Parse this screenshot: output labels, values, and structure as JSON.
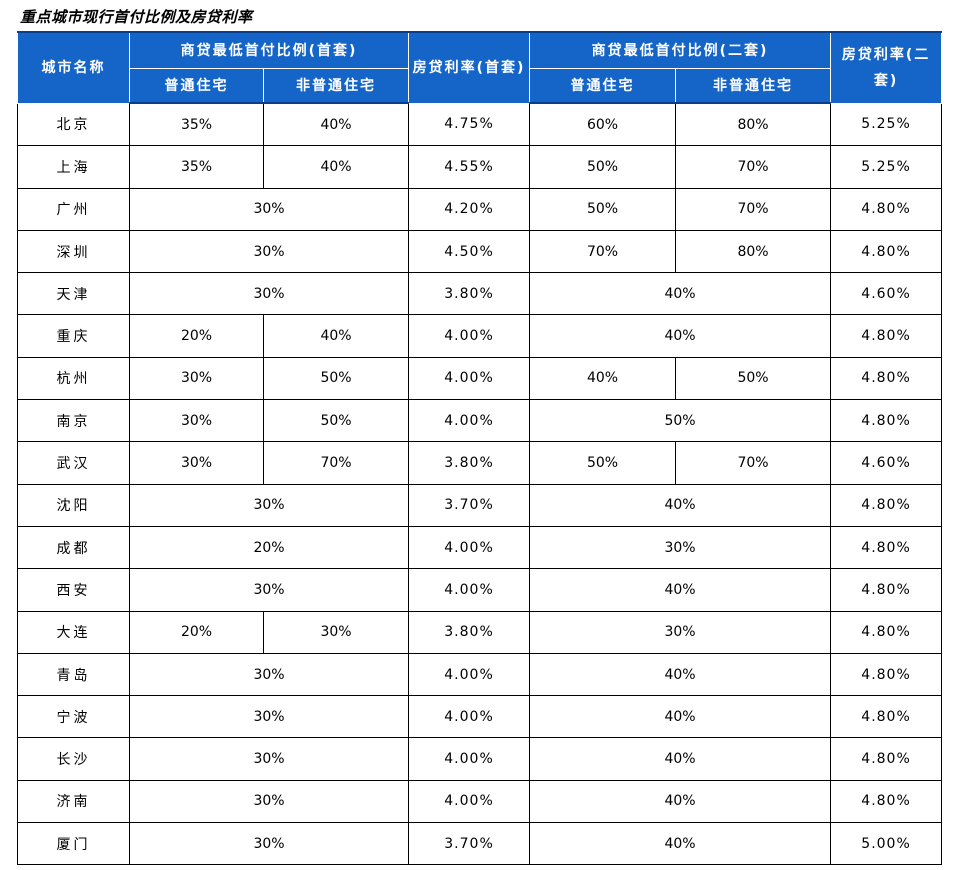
{
  "title": "重点城市现行首付比例及房贷利率",
  "header": {
    "city": "城市名称",
    "first_group": "商贷最低首付比例(首套)",
    "rate_first": "房贷利率(首套)",
    "second_group": "商贷最低首付比例(二套)",
    "rate_second": "房贷利率(二套)",
    "ordinary": "普通住宅",
    "non_ordinary": "非普通住宅"
  },
  "rows": [
    {
      "city": "北京",
      "first": [
        "35%",
        "40%"
      ],
      "rate1": "4.75%",
      "second": [
        "60%",
        "80%"
      ],
      "rate2": "5.25%"
    },
    {
      "city": "上海",
      "first": [
        "35%",
        "40%"
      ],
      "rate1": "4.55%",
      "second": [
        "50%",
        "70%"
      ],
      "rate2": "5.25%"
    },
    {
      "city": "广州",
      "first": [
        "30%"
      ],
      "rate1": "4.20%",
      "second": [
        "50%",
        "70%"
      ],
      "rate2": "4.80%"
    },
    {
      "city": "深圳",
      "first": [
        "30%"
      ],
      "rate1": "4.50%",
      "second": [
        "70%",
        "80%"
      ],
      "rate2": "4.80%"
    },
    {
      "city": "天津",
      "first": [
        "30%"
      ],
      "rate1": "3.80%",
      "second": [
        "40%"
      ],
      "rate2": "4.60%"
    },
    {
      "city": "重庆",
      "first": [
        "20%",
        "40%"
      ],
      "rate1": "4.00%",
      "second": [
        "40%"
      ],
      "rate2": "4.80%"
    },
    {
      "city": "杭州",
      "first": [
        "30%",
        "50%"
      ],
      "rate1": "4.00%",
      "second": [
        "40%",
        "50%"
      ],
      "rate2": "4.80%"
    },
    {
      "city": "南京",
      "first": [
        "30%",
        "50%"
      ],
      "rate1": "4.00%",
      "second": [
        "50%"
      ],
      "rate2": "4.80%"
    },
    {
      "city": "武汉",
      "first": [
        "30%",
        "70%"
      ],
      "rate1": "3.80%",
      "second": [
        "50%",
        "70%"
      ],
      "rate2": "4.60%"
    },
    {
      "city": "沈阳",
      "first": [
        "30%"
      ],
      "rate1": "3.70%",
      "second": [
        "40%"
      ],
      "rate2": "4.80%"
    },
    {
      "city": "成都",
      "first": [
        "20%"
      ],
      "rate1": "4.00%",
      "second": [
        "30%"
      ],
      "rate2": "4.80%"
    },
    {
      "city": "西安",
      "first": [
        "30%"
      ],
      "rate1": "4.00%",
      "second": [
        "40%"
      ],
      "rate2": "4.80%"
    },
    {
      "city": "大连",
      "first": [
        "20%",
        "30%"
      ],
      "rate1": "3.80%",
      "second": [
        "30%"
      ],
      "rate2": "4.80%"
    },
    {
      "city": "青岛",
      "first": [
        "30%"
      ],
      "rate1": "4.00%",
      "second": [
        "40%"
      ],
      "rate2": "4.80%"
    },
    {
      "city": "宁波",
      "first": [
        "30%"
      ],
      "rate1": "4.00%",
      "second": [
        "40%"
      ],
      "rate2": "4.80%"
    },
    {
      "city": "长沙",
      "first": [
        "30%"
      ],
      "rate1": "4.00%",
      "second": [
        "40%"
      ],
      "rate2": "4.80%"
    },
    {
      "city": "济南",
      "first": [
        "30%"
      ],
      "rate1": "4.00%",
      "second": [
        "40%"
      ],
      "rate2": "4.80%"
    },
    {
      "city": "厦门",
      "first": [
        "30%"
      ],
      "rate1": "3.70%",
      "second": [
        "40%"
      ],
      "rate2": "5.00%"
    }
  ]
}
